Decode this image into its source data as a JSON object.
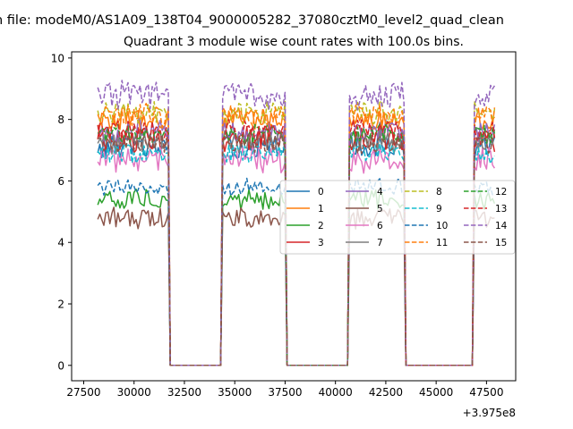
{
  "figure": {
    "suptitle": "n file: modeM0/AS1A09_138T04_9000005282_37080cztM0_level2_quad_clean",
    "title": "Quadrant 3 module wise count rates with 100.0s bins.",
    "x_offset_label": "+3.975e8"
  },
  "chart_data": {
    "type": "line",
    "title": "Quadrant 3 module wise count rates with 100.0s bins.",
    "xlabel": "",
    "ylabel": "",
    "x_offset": 397500000,
    "xlim": [
      26900,
      48950
    ],
    "ylim": [
      -0.5,
      10.2
    ],
    "xticks": [
      27500,
      30000,
      32500,
      35000,
      37500,
      40000,
      42500,
      45000,
      47500
    ],
    "xtick_labels": [
      "27500",
      "30000",
      "32500",
      "35000",
      "37500",
      "40000",
      "42500",
      "45000",
      "47500"
    ],
    "yticks": [
      0,
      2,
      4,
      6,
      8,
      10
    ],
    "ytick_labels": [
      "0",
      "2",
      "4",
      "6",
      "8",
      "10"
    ],
    "grid": false,
    "legend_position": "center-right",
    "time_bin_s": 100,
    "on_intervals": [
      [
        28200,
        31700
      ],
      [
        34400,
        37500
      ],
      [
        40700,
        43400
      ],
      [
        46900,
        47900
      ]
    ],
    "series": [
      {
        "name": "0",
        "color": "#1f77b4",
        "style": "solid",
        "level": 7.1,
        "spread": 0.35
      },
      {
        "name": "1",
        "color": "#ff7f0e",
        "style": "solid",
        "level": 8.0,
        "spread": 0.35
      },
      {
        "name": "2",
        "color": "#2ca02c",
        "style": "solid",
        "level": 5.4,
        "spread": 0.3
      },
      {
        "name": "3",
        "color": "#d62728",
        "style": "solid",
        "level": 7.4,
        "spread": 0.4
      },
      {
        "name": "4",
        "color": "#9467bd",
        "style": "solid",
        "level": 7.6,
        "spread": 0.35
      },
      {
        "name": "5",
        "color": "#8c564b",
        "style": "solid",
        "level": 4.8,
        "spread": 0.3
      },
      {
        "name": "6",
        "color": "#e377c2",
        "style": "solid",
        "level": 6.7,
        "spread": 0.4
      },
      {
        "name": "7",
        "color": "#7f7f7f",
        "style": "solid",
        "level": 7.3,
        "spread": 0.35
      },
      {
        "name": "8",
        "color": "#bcbd22",
        "style": "dashed",
        "level": 8.2,
        "spread": 0.35
      },
      {
        "name": "9",
        "color": "#17becf",
        "style": "dashed",
        "level": 6.9,
        "spread": 0.3
      },
      {
        "name": "10",
        "color": "#1f77b4",
        "style": "dashed",
        "level": 5.8,
        "spread": 0.25
      },
      {
        "name": "11",
        "color": "#ff7f0e",
        "style": "dashed",
        "level": 8.1,
        "spread": 0.35
      },
      {
        "name": "12",
        "color": "#2ca02c",
        "style": "dashed",
        "level": 7.5,
        "spread": 0.3
      },
      {
        "name": "13",
        "color": "#d62728",
        "style": "dashed",
        "level": 7.6,
        "spread": 0.35
      },
      {
        "name": "14",
        "color": "#9467bd",
        "style": "dashed",
        "level": 8.8,
        "spread": 0.4
      },
      {
        "name": "15",
        "color": "#8c564b",
        "style": "dashed",
        "level": 7.2,
        "spread": 0.3
      }
    ]
  }
}
